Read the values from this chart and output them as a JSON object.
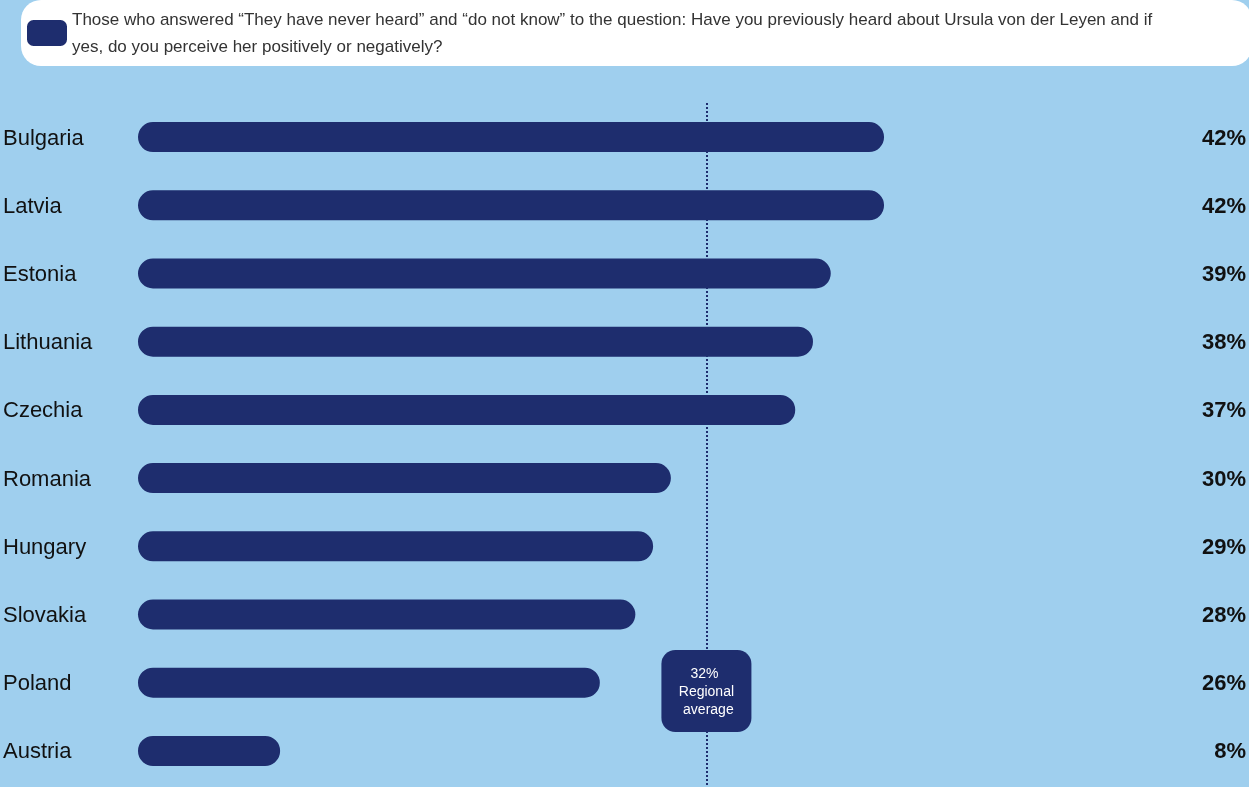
{
  "chart_data": {
    "type": "bar",
    "orientation": "horizontal",
    "categories": [
      "Bulgaria",
      "Latvia",
      "Estonia",
      "Lithuania",
      "Czechia",
      "Romania",
      "Hungary",
      "Slovakia",
      "Poland",
      "Austria"
    ],
    "series": [
      {
        "name": "Those who answered “They have never heard” and “do not know” to the question: Have you previously heard about Ursula von der Leyen and if yes, do you perceive her positively or negatively?",
        "color": "#1e2d6e",
        "values": [
          42,
          42,
          39,
          38,
          37,
          30,
          29,
          28,
          26,
          8
        ],
        "value_labels": [
          "42%",
          "42%",
          "39%",
          "38%",
          "37%",
          "30%",
          "29%",
          "28%",
          "26%",
          "8%"
        ]
      }
    ],
    "ref_lines": [
      {
        "axis": "x",
        "value": 32,
        "label": "32% Regional average",
        "color": "#1e2d6e",
        "line_style": "dotted"
      }
    ],
    "legend": "top"
  }
}
